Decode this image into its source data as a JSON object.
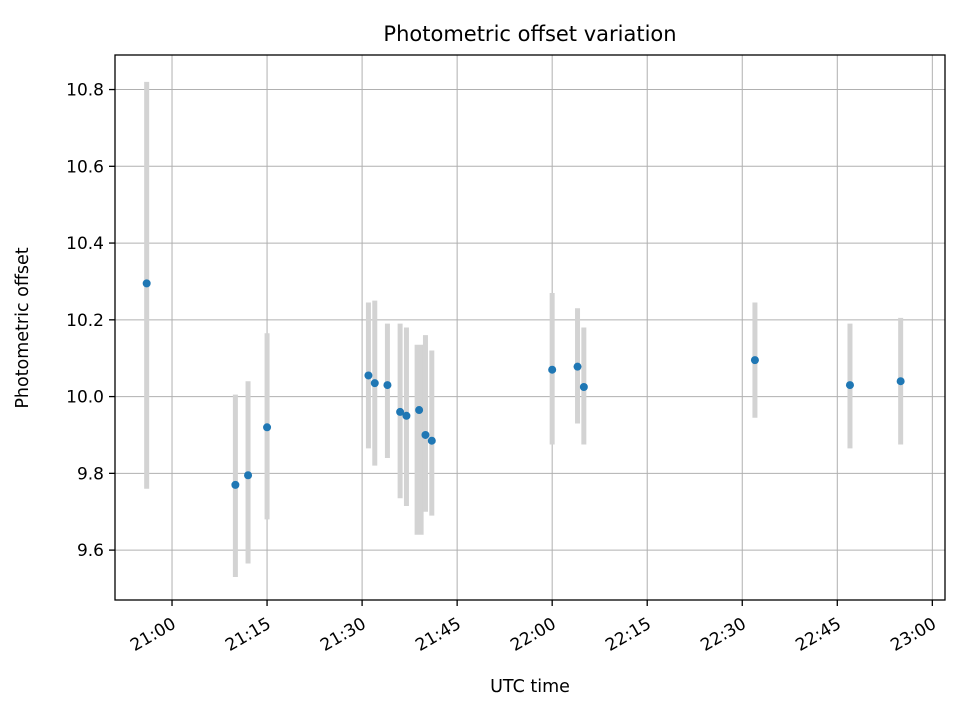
{
  "chart_data": {
    "type": "scatter",
    "title": "Photometric offset variation",
    "xlabel": "UTC time",
    "ylabel": "Photometric offset",
    "xlim": [
      "20:51",
      "23:02"
    ],
    "ylim": [
      9.47,
      10.89
    ],
    "xticks": [
      "21:00",
      "21:15",
      "21:30",
      "21:45",
      "22:00",
      "22:15",
      "22:30",
      "22:45",
      "23:00"
    ],
    "yticks": [
      9.6,
      9.8,
      10.0,
      10.2,
      10.4,
      10.6,
      10.8
    ],
    "grid": true,
    "legend": "none",
    "style": {
      "marker_color": "#1f77b4",
      "errorbar_color": "#d3d3d3",
      "grid_color": "#b0b0b0",
      "axes_color": "#000000",
      "marker_radius": 4,
      "errorbar_width": 5
    },
    "points": [
      {
        "t": "20:56",
        "y": 10.295,
        "lo": 9.76,
        "hi": 10.82
      },
      {
        "t": "21:10",
        "y": 9.77,
        "lo": 9.53,
        "hi": 10.005
      },
      {
        "t": "21:12",
        "y": 9.795,
        "lo": 9.565,
        "hi": 10.04
      },
      {
        "t": "21:15",
        "y": 9.92,
        "lo": 9.68,
        "hi": 10.165
      },
      {
        "t": "21:31",
        "y": 10.055,
        "lo": 9.865,
        "hi": 10.245
      },
      {
        "t": "21:32",
        "y": 10.035,
        "lo": 9.82,
        "hi": 10.25
      },
      {
        "t": "21:34",
        "y": 10.03,
        "lo": 9.84,
        "hi": 10.19
      },
      {
        "t": "21:36",
        "y": 9.96,
        "lo": 9.735,
        "hi": 10.19
      },
      {
        "t": "21:37",
        "y": 9.95,
        "lo": 9.715,
        "hi": 10.18
      },
      {
        "t": "21:39",
        "y": 9.965,
        "lo": 9.64,
        "hi": 10.135,
        "bw": 9
      },
      {
        "t": "21:40",
        "y": 9.9,
        "lo": 9.7,
        "hi": 10.16
      },
      {
        "t": "21:41",
        "y": 9.885,
        "lo": 9.69,
        "hi": 10.12
      },
      {
        "t": "22:00",
        "y": 10.07,
        "lo": 9.875,
        "hi": 10.27
      },
      {
        "t": "22:04",
        "y": 10.078,
        "lo": 9.93,
        "hi": 10.23
      },
      {
        "t": "22:05",
        "y": 10.025,
        "lo": 9.875,
        "hi": 10.18
      },
      {
        "t": "22:32",
        "y": 10.095,
        "lo": 9.945,
        "hi": 10.245
      },
      {
        "t": "22:47",
        "y": 10.03,
        "lo": 9.865,
        "hi": 10.19
      },
      {
        "t": "22:55",
        "y": 10.04,
        "lo": 9.875,
        "hi": 10.205
      }
    ]
  }
}
